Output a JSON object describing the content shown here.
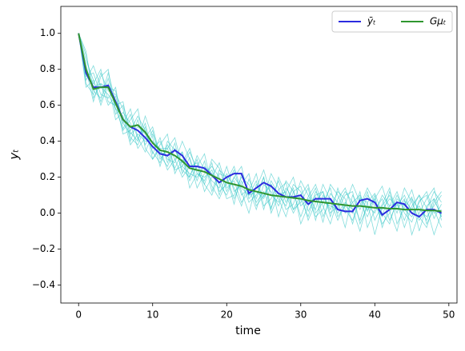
{
  "chart_data": {
    "type": "line",
    "xlabel": "time",
    "ylabel": "yₜ",
    "x": [
      0,
      1,
      2,
      3,
      4,
      5,
      6,
      7,
      8,
      9,
      10,
      11,
      12,
      13,
      14,
      15,
      16,
      17,
      18,
      19,
      20,
      21,
      22,
      23,
      24,
      25,
      26,
      27,
      28,
      29,
      30,
      31,
      32,
      33,
      34,
      35,
      36,
      37,
      38,
      39,
      40,
      41,
      42,
      43,
      44,
      45,
      46,
      47,
      48,
      49
    ],
    "xlim": [
      -2.4,
      51.1
    ],
    "xticks": [
      0,
      10,
      20,
      30,
      40,
      50
    ],
    "ylim": [
      -0.5,
      1.15
    ],
    "yticks": [
      {
        "value": -0.4,
        "label": "−0.4"
      },
      {
        "value": -0.2,
        "label": "−0.2"
      },
      {
        "value": 0,
        "label": "0.0"
      },
      0.2,
      0.4,
      0.6,
      0.8,
      {
        "value": 1,
        "label": "1.0"
      }
    ],
    "legend": "upper right",
    "series": [
      {
        "color": "#2ec4c4",
        "values": [
          1.0,
          0.85,
          0.74,
          0.62,
          0.75,
          0.58,
          0.47,
          0.55,
          0.41,
          0.5,
          0.33,
          0.42,
          0.28,
          0.39,
          0.22,
          0.31,
          0.18,
          0.29,
          0.12,
          0.24,
          0.2,
          0.05,
          0.22,
          0.1,
          0.18,
          0.02,
          0.16,
          0.08,
          -0.02,
          0.12,
          0.15,
          0.01,
          0.09,
          -0.05,
          0.11,
          0.06,
          -0.08,
          0.1,
          0.02,
          0.12,
          -0.04,
          0.05,
          0.14,
          -0.06,
          0.03,
          0.09,
          -0.1,
          0.04,
          0.08,
          -0.02
        ]
      },
      {
        "color": "#2ec4c4",
        "values": [
          1.0,
          0.72,
          0.66,
          0.78,
          0.68,
          0.66,
          0.58,
          0.4,
          0.52,
          0.38,
          0.46,
          0.3,
          0.36,
          0.25,
          0.34,
          0.2,
          0.3,
          0.16,
          0.28,
          0.1,
          0.22,
          0.14,
          0.04,
          0.19,
          0.08,
          0.2,
          0.03,
          0.13,
          0.17,
          0.02,
          0.06,
          0.14,
          -0.04,
          0.1,
          0.02,
          0.12,
          0.08,
          -0.06,
          0.09,
          0.01,
          0.1,
          -0.08,
          0.04,
          0.12,
          0.0,
          -0.05,
          0.07,
          0.1,
          -0.03,
          0.05
        ]
      },
      {
        "color": "#2ec4c4",
        "values": [
          1.0,
          0.8,
          0.62,
          0.76,
          0.8,
          0.55,
          0.6,
          0.45,
          0.4,
          0.54,
          0.42,
          0.26,
          0.4,
          0.35,
          0.28,
          0.36,
          0.22,
          0.18,
          0.3,
          0.25,
          0.12,
          0.2,
          0.26,
          0.08,
          0.14,
          0.24,
          0.1,
          0.06,
          0.18,
          0.12,
          -0.02,
          0.09,
          0.16,
          0.04,
          -0.06,
          0.08,
          0.14,
          0.02,
          -0.1,
          0.06,
          0.11,
          0.0,
          -0.06,
          0.08,
          0.04,
          0.13,
          -0.02,
          -0.08,
          0.06,
          0.12
        ]
      },
      {
        "color": "#2ec4c4",
        "values": [
          1.0,
          0.76,
          0.78,
          0.66,
          0.64,
          0.7,
          0.46,
          0.52,
          0.58,
          0.36,
          0.3,
          0.38,
          0.44,
          0.22,
          0.3,
          0.18,
          0.26,
          0.33,
          0.15,
          0.08,
          0.18,
          0.26,
          0.12,
          0.0,
          0.16,
          0.09,
          0.22,
          0.14,
          0.02,
          0.05,
          0.18,
          0.1,
          0.02,
          0.16,
          0.07,
          -0.04,
          0.05,
          0.16,
          0.06,
          -0.02,
          0.08,
          0.15,
          0.01,
          -0.1,
          0.07,
          0.02,
          0.1,
          0.03,
          -0.12,
          0.0
        ]
      },
      {
        "color": "#2ec4c4",
        "values": [
          1.0,
          0.88,
          0.7,
          0.72,
          0.6,
          0.65,
          0.5,
          0.44,
          0.48,
          0.44,
          0.36,
          0.4,
          0.3,
          0.28,
          0.4,
          0.3,
          0.14,
          0.22,
          0.26,
          0.2,
          0.08,
          0.1,
          0.2,
          0.16,
          0.06,
          0.12,
          0.02,
          0.2,
          0.1,
          0.0,
          0.08,
          -0.02,
          0.12,
          0.06,
          0.14,
          -0.02,
          0.04,
          0.0,
          0.12,
          -0.08,
          0.02,
          0.08,
          -0.04,
          0.06,
          -0.08,
          0.04,
          0.1,
          -0.06,
          0.02,
          -0.08
        ]
      },
      {
        "color": "#2ec4c4",
        "values": [
          1.0,
          0.7,
          0.74,
          0.6,
          0.72,
          0.52,
          0.56,
          0.5,
          0.36,
          0.42,
          0.48,
          0.32,
          0.26,
          0.36,
          0.24,
          0.2,
          0.32,
          0.24,
          0.18,
          0.14,
          0.26,
          0.12,
          0.16,
          0.22,
          0.04,
          0.1,
          0.16,
          -0.02,
          0.12,
          0.2,
          0.04,
          0.08,
          -0.02,
          0.02,
          0.16,
          0.1,
          0.0,
          0.06,
          -0.04,
          0.1,
          0.04,
          -0.02,
          0.12,
          0.02,
          0.08,
          -0.12,
          0.0,
          0.08,
          0.14,
          -0.04
        ]
      },
      {
        "color": "#2ec4c4",
        "values": [
          1.0,
          0.82,
          0.68,
          0.64,
          0.78,
          0.62,
          0.44,
          0.46,
          0.54,
          0.46,
          0.34,
          0.28,
          0.38,
          0.3,
          0.2,
          0.26,
          0.28,
          0.12,
          0.2,
          0.28,
          0.14,
          0.18,
          0.06,
          0.12,
          0.22,
          0.04,
          0.08,
          0.18,
          0.06,
          0.14,
          -0.06,
          0.04,
          0.1,
          0.12,
          -0.02,
          0.14,
          0.02,
          -0.04,
          0.08,
          0.06,
          -0.12,
          0.04,
          0.1,
          0.0,
          0.14,
          0.06,
          -0.04,
          0.02,
          0.12,
          0.06
        ]
      },
      {
        "color": "#2ec4c4",
        "values": [
          1.0,
          0.74,
          0.82,
          0.7,
          0.66,
          0.58,
          0.54,
          0.38,
          0.44,
          0.4,
          0.4,
          0.36,
          0.24,
          0.3,
          0.34,
          0.14,
          0.22,
          0.2,
          0.24,
          0.12,
          0.16,
          0.24,
          0.1,
          0.14,
          0.02,
          0.16,
          0.12,
          0.04,
          0.14,
          0.08,
          0.1,
          0.16,
          0.0,
          0.06,
          0.04,
          0.02,
          0.1,
          0.12,
          -0.06,
          0.04,
          0.0,
          0.1,
          0.04,
          0.06,
          -0.04,
          0.08,
          0.02,
          -0.02,
          0.04,
          0.1
        ]
      },
      {
        "color": "#2ec4c4",
        "values": [
          1.0,
          0.9,
          0.64,
          0.72,
          0.7,
          0.68,
          0.5,
          0.58,
          0.42,
          0.34,
          0.44,
          0.34,
          0.32,
          0.24,
          0.26,
          0.34,
          0.24,
          0.16,
          0.1,
          0.22,
          0.2,
          0.08,
          0.18,
          0.06,
          0.1,
          0.2,
          0.0,
          0.1,
          0.04,
          0.16,
          0.12,
          -0.04,
          0.06,
          0.12,
          0.0,
          0.04,
          0.12,
          0.06,
          0.1,
          0.02,
          0.08,
          -0.06,
          0.0,
          0.1,
          0.02,
          -0.02,
          0.06,
          0.12,
          0.0,
          0.02
        ]
      },
      {
        "color": "#2ec4c4",
        "values": [
          1.0,
          0.78,
          0.72,
          0.8,
          0.62,
          0.6,
          0.62,
          0.42,
          0.38,
          0.48,
          0.3,
          0.36,
          0.36,
          0.42,
          0.26,
          0.22,
          0.2,
          0.26,
          0.22,
          0.16,
          0.1,
          0.2,
          0.14,
          0.1,
          0.12,
          0.08,
          0.18,
          0.1,
          0.12,
          0.02,
          0.1,
          0.06,
          0.14,
          -0.02,
          0.08,
          0.0,
          0.06,
          0.02,
          0.04,
          0.14,
          0.06,
          0.02,
          0.08,
          0.04,
          0.1,
          0.0,
          0.04,
          -0.04,
          0.08,
          -0.02
        ]
      },
      {
        "name": "ȳₜ",
        "color": "#2b2bdf",
        "values": [
          1.0,
          0.78,
          0.7,
          0.7,
          0.71,
          0.62,
          0.52,
          0.48,
          0.46,
          0.42,
          0.37,
          0.33,
          0.32,
          0.35,
          0.32,
          0.26,
          0.26,
          0.25,
          0.21,
          0.17,
          0.2,
          0.22,
          0.22,
          0.11,
          0.14,
          0.17,
          0.15,
          0.11,
          0.09,
          0.09,
          0.1,
          0.05,
          0.08,
          0.08,
          0.08,
          0.02,
          0.01,
          0.01,
          0.07,
          0.08,
          0.06,
          -0.01,
          0.02,
          0.06,
          0.05,
          0.0,
          -0.02,
          0.02,
          0.02,
          0.0
        ]
      },
      {
        "name": "Gμₜ",
        "color": "#2f962f",
        "values": [
          1.0,
          0.8,
          0.69,
          0.7,
          0.7,
          0.61,
          0.52,
          0.48,
          0.49,
          0.45,
          0.39,
          0.35,
          0.34,
          0.32,
          0.29,
          0.25,
          0.24,
          0.23,
          0.21,
          0.19,
          0.17,
          0.16,
          0.15,
          0.13,
          0.12,
          0.11,
          0.1,
          0.095,
          0.09,
          0.085,
          0.08,
          0.07,
          0.065,
          0.06,
          0.055,
          0.05,
          0.045,
          0.04,
          0.04,
          0.035,
          0.03,
          0.03,
          0.025,
          0.025,
          0.02,
          0.02,
          0.02,
          0.015,
          0.015,
          0.01
        ]
      }
    ]
  }
}
